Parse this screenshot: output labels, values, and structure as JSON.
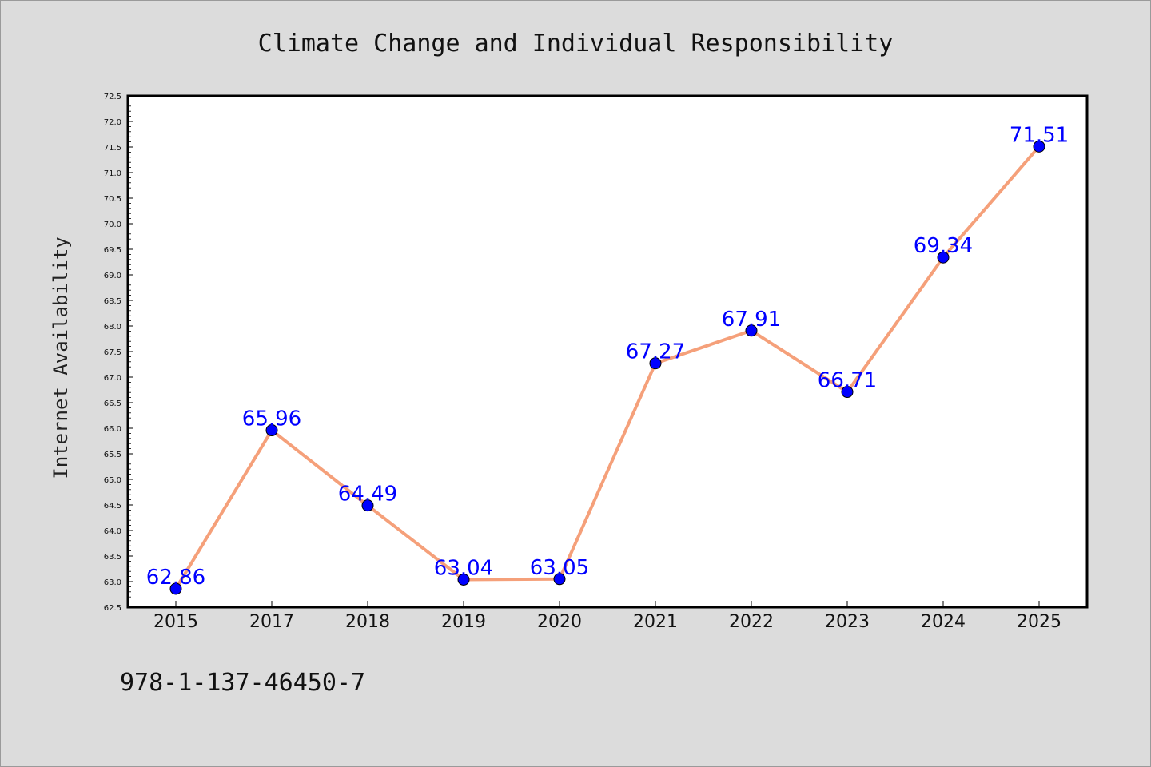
{
  "chart_data": {
    "type": "line",
    "title": "Climate Change and Individual Responsibility",
    "xlabel": "",
    "ylabel": "Internet Availability",
    "categories": [
      "2015",
      "2017",
      "2018",
      "2019",
      "2020",
      "2021",
      "2022",
      "2023",
      "2024",
      "2025"
    ],
    "series": [
      {
        "values": [
          62.86,
          65.96,
          64.49,
          63.04,
          63.05,
          67.27,
          67.91,
          66.71,
          69.34,
          71.51
        ],
        "data_labels": [
          "62.86",
          "65.96",
          "64.49",
          "63.04",
          "63.05",
          "67.27",
          "67.91",
          "66.71",
          "69.34",
          "71.51"
        ],
        "line_color": "#f5a07a",
        "marker_color": "#0000ff"
      }
    ],
    "ylim": [
      62.5,
      72.5
    ],
    "yticks": [
      "62.5",
      "63.0",
      "63.5",
      "64.0",
      "64.5",
      "65.0",
      "65.5",
      "66.0",
      "66.5",
      "67.0",
      "67.5",
      "68.0",
      "68.5",
      "69.0",
      "69.5",
      "70.0",
      "70.5",
      "71.0",
      "71.5",
      "72.0",
      "72.5"
    ],
    "grid": false,
    "legend": "none"
  },
  "footer": {
    "isbn": "978-1-137-46450-7"
  },
  "colors": {
    "background": "#dcdcdc",
    "plot_background": "#ffffff",
    "line": "#f5a07a",
    "marker": "#0000ff",
    "data_label": "#0000ff"
  }
}
